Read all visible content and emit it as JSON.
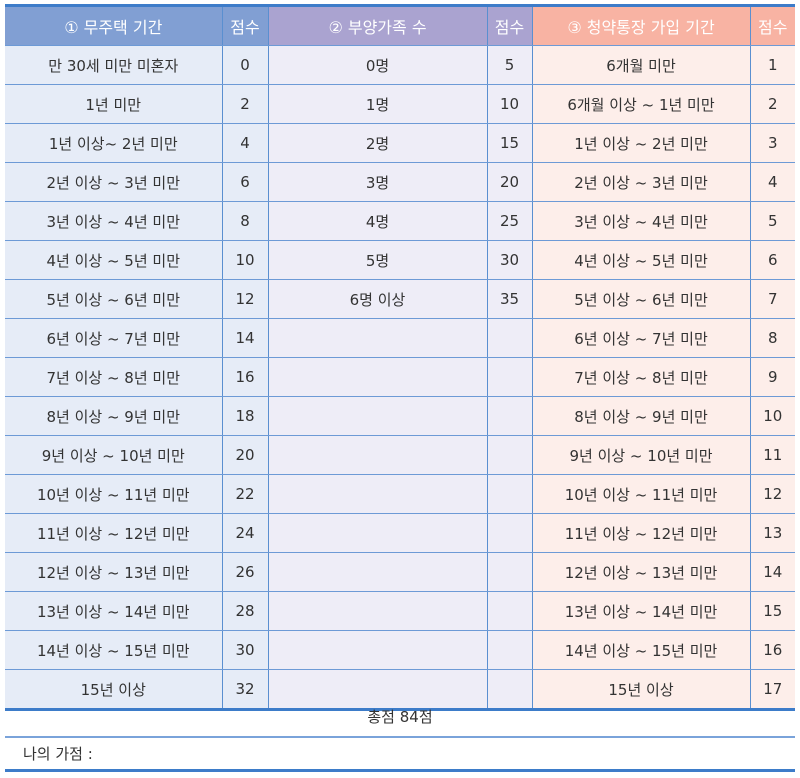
{
  "headers": {
    "col1": "① 무주택 기간",
    "col2": "점수",
    "col3": "② 부양가족 수",
    "col4": "점수",
    "col5": "③ 청약통장 가입 기간",
    "col6": "점수"
  },
  "colors": {
    "header_blue": "#819fd3",
    "header_purple": "#aaa3d0",
    "header_salmon": "#f8b3a3",
    "line": "#3d7cc9"
  },
  "homeless": [
    {
      "label": "만 30세 미만 미혼자",
      "score": "0"
    },
    {
      "label": "1년 미만",
      "score": "2"
    },
    {
      "label": "1년 이상~ 2년 미만",
      "score": "4"
    },
    {
      "label": "2년 이상 ~ 3년 미만",
      "score": "6"
    },
    {
      "label": "3년 이상 ~ 4년 미만",
      "score": "8"
    },
    {
      "label": "4년 이상 ~ 5년 미만",
      "score": "10"
    },
    {
      "label": "5년 이상 ~ 6년 미만",
      "score": "12"
    },
    {
      "label": "6년 이상 ~ 7년 미만",
      "score": "14"
    },
    {
      "label": "7년 이상 ~ 8년 미만",
      "score": "16"
    },
    {
      "label": "8년 이상 ~ 9년 미만",
      "score": "18"
    },
    {
      "label": "9년 이상 ~ 10년 미만",
      "score": "20"
    },
    {
      "label": "10년 이상 ~ 11년 미만",
      "score": "22"
    },
    {
      "label": "11년 이상 ~ 12년 미만",
      "score": "24"
    },
    {
      "label": "12년 이상 ~ 13년 미만",
      "score": "26"
    },
    {
      "label": "13년 이상 ~ 14년 미만",
      "score": "28"
    },
    {
      "label": "14년 이상 ~ 15년 미만",
      "score": "30"
    },
    {
      "label": "15년 이상",
      "score": "32"
    }
  ],
  "dependents": [
    {
      "label": "0명",
      "score": "5"
    },
    {
      "label": "1명",
      "score": "10"
    },
    {
      "label": "2명",
      "score": "15"
    },
    {
      "label": "3명",
      "score": "20"
    },
    {
      "label": "4명",
      "score": "25"
    },
    {
      "label": "5명",
      "score": "30"
    },
    {
      "label": "6명 이상",
      "score": "35"
    }
  ],
  "subscription": [
    {
      "label": "6개월 미만",
      "score": "1"
    },
    {
      "label": "6개월 이상 ~ 1년 미만",
      "score": "2"
    },
    {
      "label": "1년 이상 ~ 2년 미만",
      "score": "3"
    },
    {
      "label": "2년 이상 ~ 3년 미만",
      "score": "4"
    },
    {
      "label": "3년 이상 ~ 4년 미만",
      "score": "5"
    },
    {
      "label": "4년 이상 ~ 5년 미만",
      "score": "6"
    },
    {
      "label": "5년 이상 ~ 6년 미만",
      "score": "7"
    },
    {
      "label": "6년 이상 ~ 7년 미만",
      "score": "8"
    },
    {
      "label": "7년 이상 ~ 8년 미만",
      "score": "9"
    },
    {
      "label": "8년 이상 ~ 9년 미만",
      "score": "10"
    },
    {
      "label": "9년 이상 ~ 10년 미만",
      "score": "11"
    },
    {
      "label": "10년 이상 ~ 11년 미만",
      "score": "12"
    },
    {
      "label": "11년 이상 ~ 12년 미만",
      "score": "13"
    },
    {
      "label": "12년 이상 ~ 13년 미만",
      "score": "14"
    },
    {
      "label": "13년 이상 ~ 14년 미만",
      "score": "15"
    },
    {
      "label": "14년 이상 ~ 15년 미만",
      "score": "16"
    },
    {
      "label": "15년 이상",
      "score": "17"
    }
  ],
  "footer": {
    "total": "총점 84점",
    "my_score_label": "나의 가점 :"
  }
}
